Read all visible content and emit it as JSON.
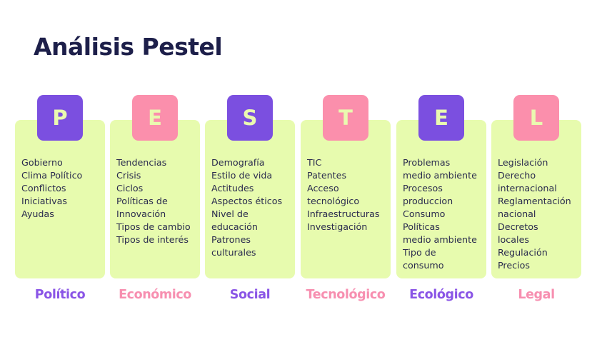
{
  "title": "Análisis Pestel",
  "colors": {
    "purple": "#7b4fe0",
    "pink": "#fb8fac",
    "card": "#e7fbae",
    "title": "#1d1f4a"
  },
  "columns": [
    {
      "letter": "P",
      "label": "Político",
      "accent": "purple",
      "items": [
        "Gobierno",
        "Clima Político",
        "Conflictos",
        "Iniciativas",
        "Ayudas"
      ]
    },
    {
      "letter": "E",
      "label": "Económico",
      "accent": "pink",
      "items": [
        "Tendencias",
        "Crisis",
        "Ciclos",
        "Políticas de",
        "Innovación",
        "Tipos de cambio",
        "Tipos de interés"
      ]
    },
    {
      "letter": "S",
      "label": "Social",
      "accent": "purple",
      "items": [
        "Demografía",
        "Estilo de vida",
        "Actitudes",
        "Aspectos éticos",
        "Nivel de",
        "educación",
        "Patrones",
        "culturales"
      ]
    },
    {
      "letter": "T",
      "label": "Tecnológico",
      "accent": "pink",
      "items": [
        "TIC",
        "Patentes",
        "Acceso",
        "tecnológico",
        "Infraestructuras",
        "Investigación"
      ]
    },
    {
      "letter": "E",
      "label": "Ecológico",
      "accent": "purple",
      "items": [
        "Problemas",
        "medio ambiente",
        "Procesos",
        "produccion",
        "Consumo",
        "Políticas",
        "medio ambiente",
        "Tipo de",
        "consumo"
      ]
    },
    {
      "letter": "L",
      "label": "Legal",
      "accent": "pink",
      "items": [
        "Legislación",
        "Derecho",
        "internacional",
        "Reglamentación",
        "nacional",
        "Decretos",
        "locales",
        "Regulación",
        "Precios"
      ]
    }
  ]
}
